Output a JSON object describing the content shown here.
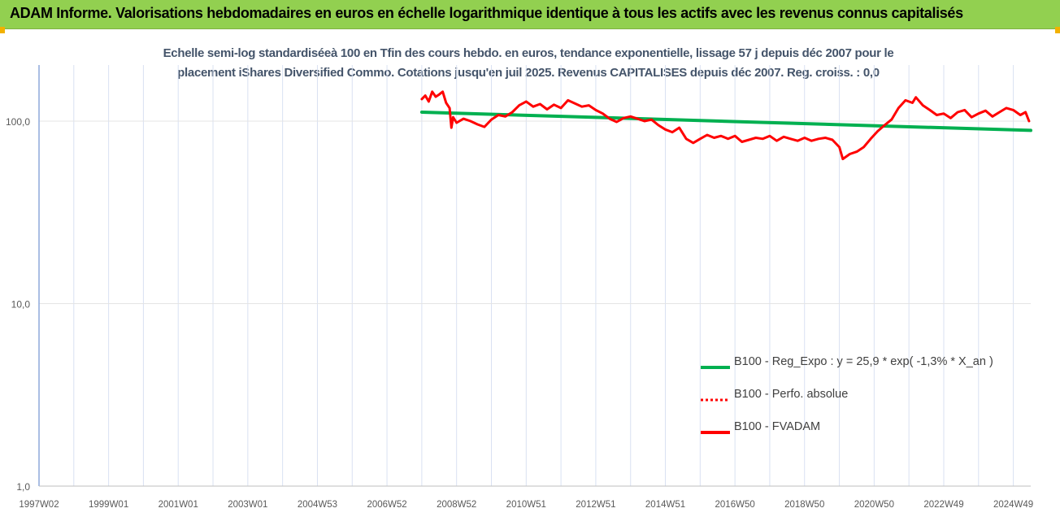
{
  "header": {
    "title": "ADAM Informe. Valorisations hebdomadaires en euros en échelle logarithmique identique à tous les actifs avec les revenus connus capitalisés"
  },
  "colors": {
    "header_bg": "#92D050",
    "corner_marks": "#F2B100",
    "title_text": "#44546A",
    "trend": "#00B050",
    "price": "#FF0000"
  },
  "chart_data": {
    "type": "line",
    "title_lines": [
      "Echelle semi-log standardiséeà 100 en Tfin des cours hebdo. en euros, tendance exponentielle, lissage 57 j depuis déc 2007 pour le",
      "placement iShares Diversified Commo. Cotations jusqu'en juil 2025. Revenus CAPITALISES depuis déc 2007. Reg. croiss. : 0,0"
    ],
    "y_scale": "log",
    "y_range": [
      1,
      200
    ],
    "y_ticks": [
      {
        "value": 1,
        "label": "1,0"
      },
      {
        "value": 10,
        "label": "10,0"
      },
      {
        "value": 100,
        "label": "100,0"
      }
    ],
    "x_range": [
      1997.0,
      2025.5
    ],
    "x_ticks": [
      {
        "value": 1997.0,
        "label": "1997W02"
      },
      {
        "value": 1999.0,
        "label": "1999W01"
      },
      {
        "value": 2001.0,
        "label": "2001W01"
      },
      {
        "value": 2003.0,
        "label": "2003W01"
      },
      {
        "value": 2005.0,
        "label": "2004W53"
      },
      {
        "value": 2007.0,
        "label": "2006W52"
      },
      {
        "value": 2009.0,
        "label": "2008W52"
      },
      {
        "value": 2011.0,
        "label": "2010W51"
      },
      {
        "value": 2013.0,
        "label": "2012W51"
      },
      {
        "value": 2015.0,
        "label": "2014W51"
      },
      {
        "value": 2017.0,
        "label": "2016W50"
      },
      {
        "value": 2019.0,
        "label": "2018W50"
      },
      {
        "value": 2021.0,
        "label": "2020W50"
      },
      {
        "value": 2023.0,
        "label": "2022W49"
      },
      {
        "value": 2025.0,
        "label": "2024W49"
      }
    ],
    "legend_position": "right",
    "series": [
      {
        "name": "B100 - Reg_Expo : y = 25,9 * exp( -1,3% *  X_an )",
        "color": "#00B050",
        "style": "solid",
        "points": [
          [
            2008.0,
            112
          ],
          [
            2025.5,
            89
          ]
        ]
      },
      {
        "name": "B100 - Perfo. absolue",
        "color": "#FF0000",
        "style": "dotted",
        "points": []
      },
      {
        "name": "B100 - FVADAM",
        "color": "#FF0000",
        "style": "solid",
        "points": [
          [
            2008.0,
            132
          ],
          [
            2008.1,
            138
          ],
          [
            2008.2,
            128
          ],
          [
            2008.3,
            145
          ],
          [
            2008.4,
            136
          ],
          [
            2008.5,
            140
          ],
          [
            2008.6,
            145
          ],
          [
            2008.7,
            126
          ],
          [
            2008.8,
            118
          ],
          [
            2008.85,
            92
          ],
          [
            2008.9,
            105
          ],
          [
            2009.0,
            98
          ],
          [
            2009.2,
            103
          ],
          [
            2009.4,
            100
          ],
          [
            2009.6,
            96
          ],
          [
            2009.8,
            93
          ],
          [
            2010.0,
            102
          ],
          [
            2010.2,
            108
          ],
          [
            2010.4,
            106
          ],
          [
            2010.6,
            112
          ],
          [
            2010.8,
            122
          ],
          [
            2011.0,
            128
          ],
          [
            2011.2,
            120
          ],
          [
            2011.4,
            124
          ],
          [
            2011.6,
            116
          ],
          [
            2011.8,
            123
          ],
          [
            2012.0,
            118
          ],
          [
            2012.2,
            130
          ],
          [
            2012.4,
            125
          ],
          [
            2012.6,
            120
          ],
          [
            2012.8,
            122
          ],
          [
            2013.0,
            115
          ],
          [
            2013.2,
            110
          ],
          [
            2013.4,
            103
          ],
          [
            2013.6,
            99
          ],
          [
            2013.8,
            104
          ],
          [
            2014.0,
            106
          ],
          [
            2014.2,
            103
          ],
          [
            2014.4,
            100
          ],
          [
            2014.6,
            102
          ],
          [
            2014.8,
            95
          ],
          [
            2015.0,
            90
          ],
          [
            2015.2,
            87
          ],
          [
            2015.4,
            92
          ],
          [
            2015.6,
            80
          ],
          [
            2015.8,
            76
          ],
          [
            2016.0,
            80
          ],
          [
            2016.2,
            84
          ],
          [
            2016.4,
            81
          ],
          [
            2016.6,
            83
          ],
          [
            2016.8,
            80
          ],
          [
            2017.0,
            83
          ],
          [
            2017.2,
            77
          ],
          [
            2017.4,
            79
          ],
          [
            2017.6,
            81
          ],
          [
            2017.8,
            80
          ],
          [
            2018.0,
            83
          ],
          [
            2018.2,
            78
          ],
          [
            2018.4,
            82
          ],
          [
            2018.6,
            80
          ],
          [
            2018.8,
            78
          ],
          [
            2019.0,
            81
          ],
          [
            2019.2,
            78
          ],
          [
            2019.4,
            80
          ],
          [
            2019.6,
            81
          ],
          [
            2019.8,
            79
          ],
          [
            2020.0,
            72
          ],
          [
            2020.1,
            62
          ],
          [
            2020.3,
            66
          ],
          [
            2020.5,
            68
          ],
          [
            2020.7,
            72
          ],
          [
            2020.9,
            80
          ],
          [
            2021.1,
            88
          ],
          [
            2021.3,
            95
          ],
          [
            2021.5,
            102
          ],
          [
            2021.7,
            118
          ],
          [
            2021.9,
            130
          ],
          [
            2022.1,
            126
          ],
          [
            2022.2,
            135
          ],
          [
            2022.4,
            122
          ],
          [
            2022.6,
            115
          ],
          [
            2022.8,
            108
          ],
          [
            2023.0,
            110
          ],
          [
            2023.2,
            104
          ],
          [
            2023.4,
            112
          ],
          [
            2023.6,
            115
          ],
          [
            2023.8,
            105
          ],
          [
            2024.0,
            110
          ],
          [
            2024.2,
            114
          ],
          [
            2024.4,
            106
          ],
          [
            2024.6,
            112
          ],
          [
            2024.8,
            118
          ],
          [
            2025.0,
            115
          ],
          [
            2025.2,
            108
          ],
          [
            2025.35,
            112
          ],
          [
            2025.45,
            100
          ]
        ]
      }
    ]
  }
}
